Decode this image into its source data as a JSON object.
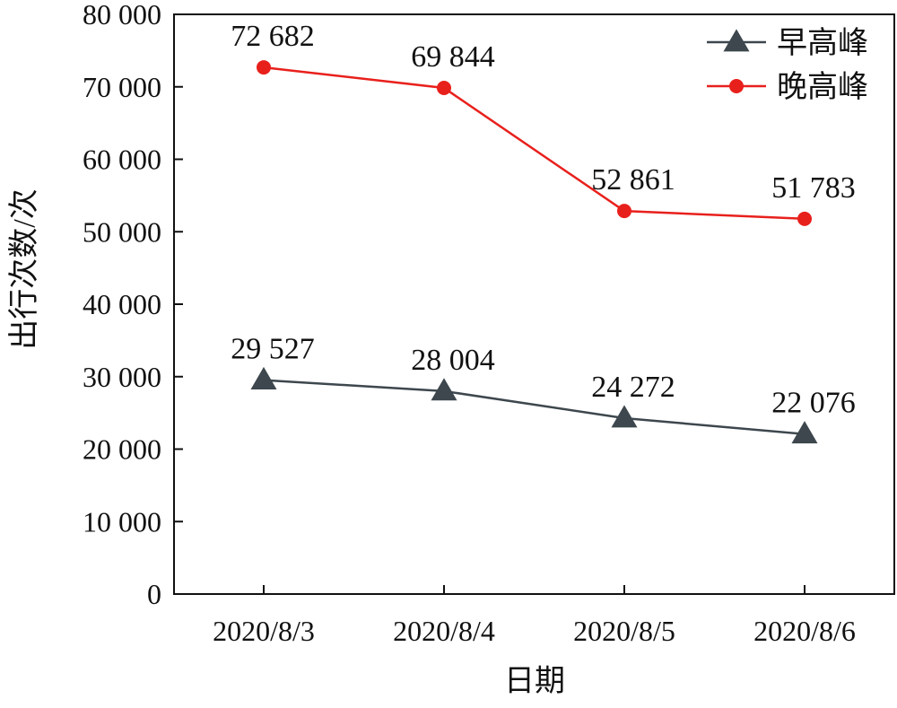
{
  "chart_data": {
    "type": "line",
    "title": "",
    "xlabel": "日期",
    "ylabel": "出行次数/次",
    "categories": [
      "2020/8/3",
      "2020/8/4",
      "2020/8/5",
      "2020/8/6"
    ],
    "ylim": [
      0,
      80000
    ],
    "yticks": [
      0,
      10000,
      20000,
      30000,
      40000,
      50000,
      60000,
      70000,
      80000
    ],
    "ytick_labels": [
      "0",
      "10 000",
      "20 000",
      "30 000",
      "40 000",
      "50 000",
      "60 000",
      "70 000",
      "80 000"
    ],
    "grid": false,
    "legend_position": "top-right",
    "series": [
      {
        "name": "早高峰",
        "color": "#3d474d",
        "marker": "triangle",
        "values": [
          29527,
          28004,
          24272,
          22076
        ],
        "labels": [
          "29 527",
          "28 004",
          "24 272",
          "22 076"
        ]
      },
      {
        "name": "晚高峰",
        "color": "#e8201c",
        "marker": "circle",
        "values": [
          72682,
          69844,
          52861,
          51783
        ],
        "labels": [
          "72 682",
          "69 844",
          "52 861",
          "51 783"
        ]
      }
    ]
  }
}
